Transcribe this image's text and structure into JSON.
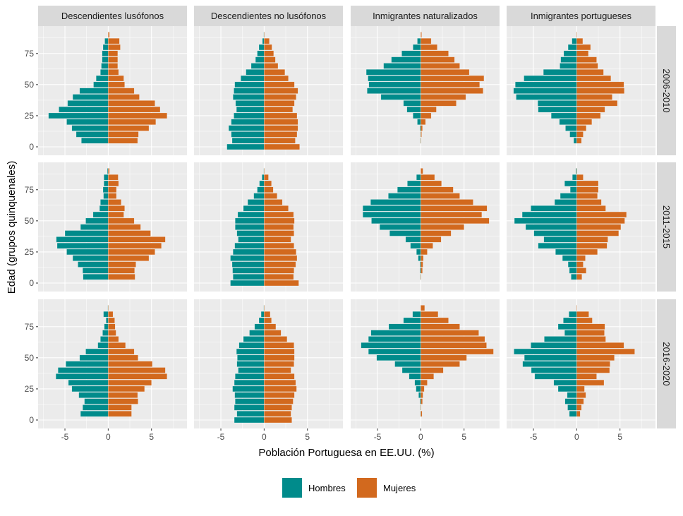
{
  "chart_data": {
    "type": "bar",
    "subtype": "population-pyramid-faceted",
    "xlabel": "Población Portuguesa en EE.UU. (%)",
    "ylabel": "Edad (grupos quinquenales)",
    "x_ticks": [
      -5,
      0,
      5
    ],
    "y_ticks": [
      0,
      25,
      50,
      75
    ],
    "xlim": [
      -8.1,
      9.1
    ],
    "ylim": [
      -6.8,
      97
    ],
    "grid": true,
    "legend_position": "bottom",
    "ages": [
      0,
      5,
      10,
      15,
      20,
      25,
      30,
      35,
      40,
      45,
      50,
      55,
      60,
      65,
      70,
      75,
      80,
      85,
      90
    ],
    "columns": [
      "Descendientes lusófonos",
      "Descendientes no lusófonos",
      "Inmigrantes naturalizados",
      "Inmigrantes portugueses"
    ],
    "rows": [
      "2006-2010",
      "2011-2015",
      "2016-2020"
    ],
    "series": [
      {
        "name": "Hombres",
        "color": "#008B8B",
        "side": "negative"
      },
      {
        "name": "Mujeres",
        "color": "#D2691E",
        "side": "positive"
      }
    ],
    "panels": [
      {
        "row": 0,
        "col": 0,
        "Hombres": [
          null,
          -3.1,
          -3.7,
          -4.2,
          -4.8,
          -6.9,
          -5.7,
          -4.7,
          -4.1,
          -3.3,
          -1.7,
          -1.4,
          -0.9,
          -0.8,
          -0.7,
          -0.7,
          -0.6,
          -0.4,
          0
        ],
        "Mujeres": [
          null,
          3.4,
          3.5,
          4.7,
          5.5,
          6.8,
          6.0,
          5.4,
          3.6,
          3.0,
          1.9,
          1.8,
          1.2,
          1.1,
          1.1,
          1.1,
          1.4,
          1.3,
          0.15
        ]
      },
      {
        "row": 0,
        "col": 1,
        "Hombres": [
          -4.3,
          -3.7,
          -3.8,
          -4.1,
          -3.8,
          -3.5,
          -3.2,
          -3.3,
          -3.6,
          -3.5,
          -3.4,
          -2.7,
          -2.1,
          -1.5,
          -1.0,
          -0.8,
          -0.6,
          -0.2,
          -0.05
        ],
        "Mujeres": [
          4.1,
          3.6,
          3.8,
          3.9,
          3.9,
          3.8,
          3.3,
          3.5,
          3.7,
          3.9,
          3.5,
          2.8,
          2.4,
          1.6,
          1.3,
          1.1,
          0.9,
          0.6,
          0.05
        ]
      },
      {
        "row": 0,
        "col": 2,
        "Hombres": [
          null,
          -0.05,
          -0.05,
          -0.1,
          -0.4,
          -0.9,
          -1.6,
          -2.0,
          -4.6,
          -6.2,
          -6.0,
          -6.1,
          -6.3,
          -4.3,
          -3.4,
          -2.2,
          -0.9,
          -0.4,
          0
        ],
        "Mujeres": [
          null,
          0.05,
          0.1,
          0.2,
          0.55,
          1.2,
          1.8,
          4.1,
          5.2,
          7.2,
          6.8,
          7.3,
          5.6,
          4.5,
          3.9,
          3.2,
          1.9,
          1.2,
          0.1
        ]
      },
      {
        "row": 0,
        "col": 3,
        "Hombres": [
          null,
          -0.35,
          -0.8,
          -1.3,
          -2.0,
          -2.95,
          -4.45,
          -4.5,
          -7.0,
          -7.3,
          -7.1,
          -6.1,
          -3.85,
          -1.95,
          -1.85,
          -1.5,
          -1.0,
          -0.55,
          0
        ],
        "Mujeres": [
          null,
          0.55,
          0.75,
          1.1,
          1.75,
          2.75,
          3.25,
          4.7,
          4.1,
          5.5,
          5.45,
          3.95,
          3.1,
          2.45,
          2.3,
          1.35,
          1.6,
          0.7,
          0.05
        ]
      },
      {
        "row": 1,
        "col": 0,
        "Hombres": [
          null,
          -2.9,
          -2.95,
          -3.5,
          -4.1,
          -4.8,
          -5.9,
          -6.0,
          -5.0,
          -3.2,
          -2.6,
          -1.75,
          -1.0,
          -0.9,
          -0.55,
          -0.6,
          -0.5,
          -0.5,
          -0.1
        ],
        "Mujeres": [
          null,
          3.1,
          3.05,
          3.2,
          4.7,
          5.4,
          6.15,
          6.6,
          4.9,
          3.75,
          3.0,
          1.8,
          1.9,
          1.5,
          0.95,
          0.95,
          1.2,
          1.15,
          0.15
        ]
      },
      {
        "row": 1,
        "col": 1,
        "Hombres": [
          -3.9,
          -3.6,
          -3.65,
          -3.7,
          -3.9,
          -3.6,
          -3.4,
          -3.0,
          -3.15,
          -3.35,
          -3.35,
          -3.05,
          -2.4,
          -1.9,
          -1.2,
          -0.8,
          -0.55,
          -0.25,
          -0.05
        ],
        "Mujeres": [
          4.0,
          3.4,
          3.45,
          3.65,
          3.8,
          3.7,
          3.45,
          3.1,
          3.45,
          3.4,
          3.5,
          3.4,
          2.8,
          2.1,
          1.5,
          1.05,
          0.85,
          0.5,
          0.05
        ]
      },
      {
        "row": 1,
        "col": 2,
        "Hombres": [
          null,
          -0.05,
          -0.1,
          -0.1,
          -0.3,
          -0.5,
          -1.2,
          -1.75,
          -3.6,
          -4.75,
          -5.7,
          -6.7,
          -6.7,
          -5.8,
          -3.75,
          -2.7,
          -1.55,
          -0.5,
          0
        ],
        "Mujeres": [
          null,
          0.05,
          0.2,
          0.25,
          0.3,
          0.75,
          1.4,
          2.35,
          3.5,
          5.0,
          7.9,
          7.05,
          7.65,
          6.05,
          4.5,
          3.75,
          2.4,
          1.6,
          0.25
        ]
      },
      {
        "row": 1,
        "col": 3,
        "Hombres": [
          null,
          -0.65,
          -0.85,
          -1.0,
          -1.65,
          -2.45,
          -4.45,
          -3.8,
          -4.95,
          -5.9,
          -7.2,
          -6.3,
          -5.3,
          -2.55,
          -1.9,
          -0.75,
          -1.4,
          -0.5,
          -0.1
        ],
        "Mujeres": [
          null,
          0.6,
          1.1,
          0.75,
          1.0,
          2.4,
          3.5,
          3.6,
          4.85,
          5.1,
          5.55,
          5.75,
          3.35,
          2.85,
          2.4,
          2.5,
          2.5,
          0.75,
          0
        ]
      },
      {
        "row": 2,
        "col": 0,
        "Hombres": [
          null,
          -3.2,
          -2.95,
          -2.75,
          -3.4,
          -4.2,
          -4.6,
          -6.05,
          -5.8,
          -4.9,
          -3.3,
          -2.6,
          -1.2,
          -0.9,
          -0.65,
          -0.45,
          -0.25,
          -0.55,
          -0.05
        ],
        "Mujeres": [
          null,
          2.7,
          2.7,
          3.45,
          3.4,
          4.2,
          5.0,
          6.8,
          6.6,
          5.1,
          3.45,
          3.0,
          2.0,
          1.2,
          0.9,
          0.8,
          0.75,
          0.55,
          0.05
        ]
      },
      {
        "row": 2,
        "col": 1,
        "Hombres": [
          -3.45,
          -3.15,
          -3.45,
          -3.35,
          -3.4,
          -3.65,
          -3.45,
          -3.35,
          -3.0,
          -3.15,
          -3.1,
          -3.2,
          -2.9,
          -2.4,
          -1.7,
          -1.1,
          -0.6,
          -0.35,
          -0.05
        ],
        "Mujeres": [
          3.2,
          3.1,
          3.2,
          3.35,
          3.5,
          3.75,
          3.65,
          3.5,
          3.1,
          3.45,
          3.5,
          3.5,
          3.45,
          2.65,
          1.95,
          1.35,
          0.85,
          0.7,
          0.05
        ]
      },
      {
        "row": 2,
        "col": 2,
        "Hombres": [
          null,
          -0.05,
          -0.05,
          -0.1,
          -0.25,
          -0.55,
          -0.7,
          -1.35,
          -2.15,
          -3.0,
          -5.1,
          -6.05,
          -6.9,
          -6.05,
          -5.75,
          -3.7,
          -2.0,
          -0.95,
          0
        ],
        "Mujeres": [
          null,
          0.15,
          0.05,
          0.2,
          0.25,
          0.4,
          0.75,
          1.5,
          2.6,
          4.5,
          5.3,
          8.4,
          7.6,
          7.4,
          6.7,
          4.5,
          3.2,
          2.0,
          0.45
        ]
      },
      {
        "row": 2,
        "col": 3,
        "Hombres": [
          null,
          -0.85,
          -1.05,
          -1.35,
          -1.1,
          -2.15,
          -2.65,
          -4.85,
          -5.25,
          -6.25,
          -6.05,
          -7.25,
          -5.3,
          -3.75,
          -1.4,
          -2.15,
          -1.55,
          -0.9,
          0
        ],
        "Mujeres": [
          null,
          0.4,
          0.55,
          0.8,
          1.05,
          0.9,
          3.15,
          2.3,
          3.8,
          3.85,
          4.35,
          6.7,
          5.45,
          3.35,
          3.2,
          3.25,
          1.8,
          1.4,
          0.05
        ]
      }
    ]
  },
  "colors": {
    "panel_bg": "#EBEBEB",
    "strip_bg": "#D9D9D9",
    "grid": "#FFFFFF",
    "hombres": "#008B8B",
    "mujeres": "#D2691E"
  }
}
